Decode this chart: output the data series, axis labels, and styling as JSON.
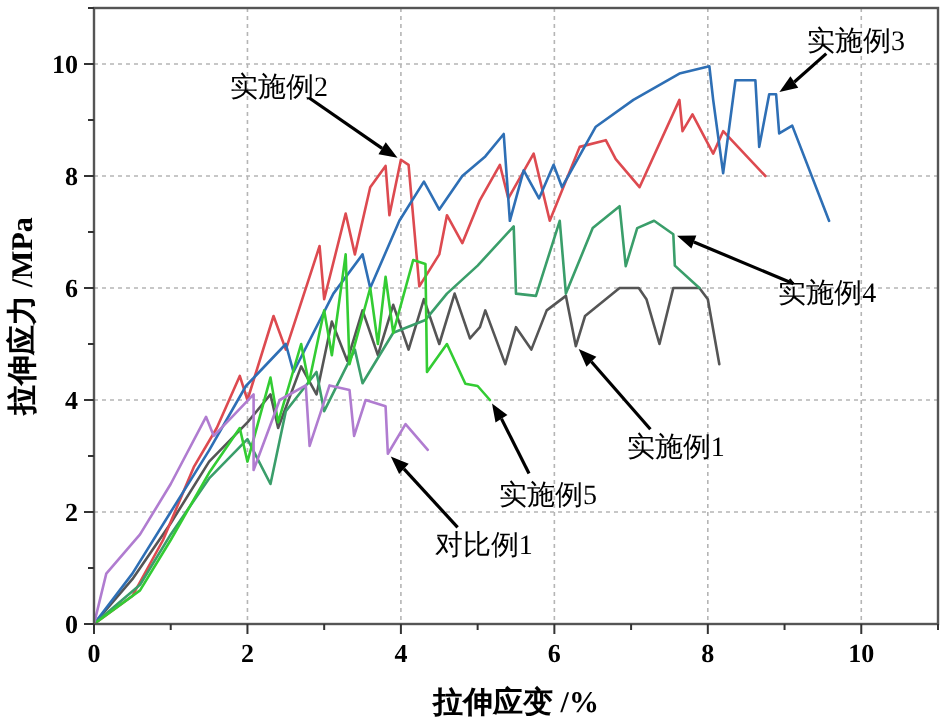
{
  "chart_data": {
    "type": "line",
    "xlabel": "拉伸应变 /%",
    "ylabel": "拉伸应力 /MPa",
    "xlim": [
      0,
      11
    ],
    "ylim": [
      0,
      11
    ],
    "grid": true,
    "marker": "none",
    "line_style": "solid",
    "xticks": [
      0,
      {
        "value": 1,
        "label": null
      },
      2,
      {
        "value": 3,
        "label": null
      },
      4,
      {
        "value": 5,
        "label": null
      },
      6,
      {
        "value": 7,
        "label": null
      },
      8,
      {
        "value": 9,
        "label": null
      },
      10,
      {
        "value": 11,
        "label": null
      }
    ],
    "yticks": [
      0,
      {
        "value": 1,
        "label": null
      },
      2,
      {
        "value": 3,
        "label": null
      },
      4,
      {
        "value": 5,
        "label": null
      },
      6,
      {
        "value": 7,
        "label": null
      },
      8,
      {
        "value": 9,
        "label": null
      },
      10,
      {
        "value": 11,
        "label": null
      }
    ],
    "series": [
      {
        "name": "实施例1",
        "color": "#555555",
        "x": [
          0,
          0.5,
          1.0,
          1.5,
          2.0,
          2.3,
          2.4,
          2.7,
          2.9,
          3.1,
          3.3,
          3.5,
          3.7,
          3.9,
          4.1,
          4.3,
          4.5,
          4.7,
          4.9,
          5.03,
          5.1,
          5.36,
          5.5,
          5.7,
          5.9,
          6.15,
          6.28,
          6.4,
          6.85,
          7.1,
          7.2,
          7.37,
          7.55,
          7.89,
          8.0,
          8.15
        ],
        "values": [
          0,
          0.8,
          1.8,
          2.9,
          3.6,
          4.1,
          3.5,
          4.6,
          4.1,
          5.4,
          4.7,
          5.6,
          4.8,
          5.7,
          4.9,
          5.8,
          5.0,
          5.9,
          5.1,
          5.3,
          5.6,
          4.64,
          5.3,
          4.9,
          5.6,
          5.86,
          4.96,
          5.5,
          6.0,
          6.0,
          5.8,
          5.0,
          6.0,
          6.0,
          5.8,
          4.64
        ]
      },
      {
        "name": "实施例2",
        "color": "#dd4a50",
        "x": [
          0,
          0.5,
          0.9,
          1.3,
          1.6,
          1.9,
          2.0,
          2.34,
          2.5,
          2.94,
          3.0,
          3.28,
          3.4,
          3.6,
          3.8,
          3.85,
          4.0,
          4.1,
          4.24,
          4.5,
          4.6,
          4.8,
          5.03,
          5.29,
          5.4,
          5.73,
          5.94,
          6.33,
          6.67,
          6.8,
          7.11,
          7.63,
          7.67,
          7.8,
          8.07,
          8.2,
          8.75
        ],
        "values": [
          0,
          0.5,
          1.5,
          2.8,
          3.5,
          4.43,
          4.0,
          5.5,
          4.9,
          6.75,
          5.8,
          7.33,
          6.6,
          7.8,
          8.18,
          7.3,
          8.29,
          8.2,
          6.03,
          6.6,
          7.3,
          6.8,
          7.57,
          8.2,
          7.6,
          8.4,
          7.2,
          8.52,
          8.64,
          8.3,
          7.8,
          9.36,
          8.8,
          9.1,
          8.4,
          8.8,
          8.0
        ]
      },
      {
        "name": "实施例3",
        "color": "#2e6fb5",
        "x": [
          0,
          0.5,
          1.0,
          1.5,
          1.98,
          2.5,
          2.6,
          3.12,
          3.5,
          3.6,
          3.98,
          4.3,
          4.5,
          4.8,
          5.1,
          5.34,
          5.42,
          5.6,
          5.8,
          5.99,
          6.1,
          6.54,
          7.03,
          7.63,
          8.02,
          8.07,
          8.2,
          8.36,
          8.62,
          8.67,
          8.8,
          8.89,
          8.93,
          9.1,
          9.58
        ],
        "values": [
          0,
          0.9,
          2.0,
          3.1,
          4.25,
          5.0,
          4.5,
          5.9,
          6.6,
          6.0,
          7.2,
          7.9,
          7.4,
          8.0,
          8.35,
          8.75,
          7.2,
          8.1,
          7.6,
          8.2,
          7.8,
          8.88,
          9.36,
          9.83,
          9.96,
          9.36,
          8.05,
          9.71,
          9.71,
          8.52,
          9.46,
          9.46,
          8.76,
          8.9,
          7.2
        ]
      },
      {
        "name": "实施例4",
        "color": "#3a9e6a",
        "x": [
          0,
          0.6,
          1.0,
          1.5,
          2.0,
          2.3,
          2.5,
          2.9,
          3.0,
          3.4,
          3.5,
          3.9,
          4.32,
          4.6,
          5.0,
          5.47,
          5.5,
          5.76,
          6.07,
          6.15,
          6.5,
          6.85,
          6.93,
          7.08,
          7.3,
          7.55,
          7.57,
          7.89
        ],
        "values": [
          0,
          0.7,
          1.6,
          2.6,
          3.3,
          2.5,
          3.8,
          4.5,
          3.8,
          4.9,
          4.3,
          5.2,
          5.43,
          5.9,
          6.4,
          7.1,
          5.9,
          5.86,
          7.2,
          5.9,
          7.07,
          7.46,
          6.39,
          7.07,
          7.2,
          6.96,
          6.4,
          6.0
        ]
      },
      {
        "name": "实施例5",
        "color": "#33cc33",
        "x": [
          0,
          0.6,
          1.0,
          1.5,
          1.9,
          2.0,
          2.3,
          2.4,
          2.7,
          2.8,
          3.0,
          3.1,
          3.28,
          3.33,
          3.6,
          3.7,
          3.8,
          3.9,
          4.16,
          4.32,
          4.34,
          4.6,
          4.84,
          5.0,
          5.16
        ],
        "values": [
          0,
          0.6,
          1.5,
          2.7,
          3.5,
          2.9,
          4.4,
          3.6,
          5.0,
          4.3,
          5.6,
          4.8,
          6.6,
          4.64,
          6.0,
          5.0,
          6.2,
          5.2,
          6.5,
          6.43,
          4.5,
          5.0,
          4.29,
          4.25,
          4.0
        ]
      },
      {
        "name": "对比例1",
        "color": "#b07cd0",
        "x": [
          0,
          0.16,
          0.6,
          1.0,
          1.46,
          1.56,
          1.8,
          2.08,
          2.08,
          2.42,
          2.76,
          2.81,
          3.07,
          3.33,
          3.39,
          3.54,
          3.8,
          3.83,
          4.06,
          4.35
        ],
        "values": [
          0,
          0.9,
          1.6,
          2.5,
          3.7,
          3.36,
          3.7,
          4.1,
          2.75,
          4.0,
          4.26,
          3.18,
          4.26,
          4.18,
          3.36,
          4.0,
          3.89,
          3.04,
          3.57,
          3.11
        ]
      }
    ]
  }
}
